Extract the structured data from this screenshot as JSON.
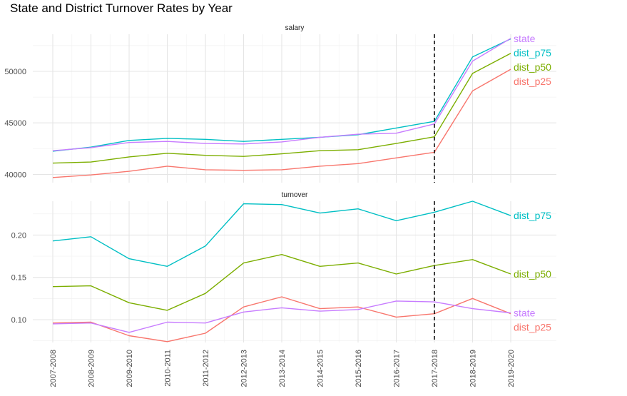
{
  "chart_data": {
    "type": "line",
    "title": "State and District Turnover Rates by Year",
    "categories": [
      "2007-2008",
      "2008-2009",
      "2009-2010",
      "2010-2011",
      "2011-2012",
      "2012-2013",
      "2013-2014",
      "2014-2015",
      "2015-2016",
      "2016-2017",
      "2017-2018",
      "2018-2019",
      "2019-2020"
    ],
    "vline": "2017-2018",
    "grid": true,
    "legend": "direct labels at right end of lines",
    "colors": {
      "dist_p25": "#F8766D",
      "dist_p50": "#7CAE00",
      "dist_p75": "#00BFC4",
      "state": "#C77CFF"
    },
    "panels": [
      {
        "strip": "salary",
        "ylim": [
          39200,
          53600
        ],
        "yticks": [
          40000,
          45000,
          50000
        ],
        "ytick_labels": [
          "40000",
          "45000",
          "50000"
        ],
        "series": [
          {
            "name": "dist_p25",
            "values": [
              39700,
              39950,
              40300,
              40800,
              40450,
              40400,
              40450,
              40800,
              41050,
              41600,
              42150,
              48100,
              50200
            ]
          },
          {
            "name": "dist_p50",
            "values": [
              41100,
              41200,
              41700,
              42050,
              41850,
              41750,
              42000,
              42300,
              42400,
              43000,
              43650,
              49800,
              51750
            ]
          },
          {
            "name": "dist_p75",
            "values": [
              42250,
              42650,
              43300,
              43500,
              43400,
              43200,
              43400,
              43600,
              43850,
              44500,
              45150,
              51400,
              53150
            ]
          },
          {
            "name": "state",
            "values": [
              42300,
              42600,
              43100,
              43200,
              43000,
              42950,
              43150,
              43600,
              43900,
              44000,
              44900,
              51000,
              53200
            ]
          }
        ],
        "end_labels": [
          "state",
          "dist_p75",
          "dist_p50",
          "dist_p25"
        ]
      },
      {
        "strip": "turnover",
        "ylim": [
          0.073,
          0.24
        ],
        "yticks": [
          0.1,
          0.15,
          0.2
        ],
        "ytick_labels": [
          "0.10",
          "0.15",
          "0.20"
        ],
        "series": [
          {
            "name": "dist_p25",
            "values": [
              0.096,
              0.097,
              0.081,
              0.074,
              0.084,
              0.115,
              0.127,
              0.113,
              0.115,
              0.103,
              0.107,
              0.125,
              0.107
            ]
          },
          {
            "name": "dist_p50",
            "values": [
              0.139,
              0.14,
              0.12,
              0.111,
              0.131,
              0.167,
              0.177,
              0.163,
              0.167,
              0.154,
              0.164,
              0.171,
              0.154
            ]
          },
          {
            "name": "dist_p75",
            "values": [
              0.193,
              0.198,
              0.172,
              0.163,
              0.187,
              0.237,
              0.236,
              0.226,
              0.231,
              0.217,
              0.227,
              0.24,
              0.223
            ]
          },
          {
            "name": "state",
            "values": [
              0.095,
              0.096,
              0.085,
              0.097,
              0.096,
              0.109,
              0.114,
              0.11,
              0.112,
              0.122,
              0.121,
              0.113,
              0.108
            ]
          }
        ],
        "end_labels": [
          "dist_p75",
          "dist_p50",
          "dist_p25",
          "state"
        ]
      }
    ]
  }
}
